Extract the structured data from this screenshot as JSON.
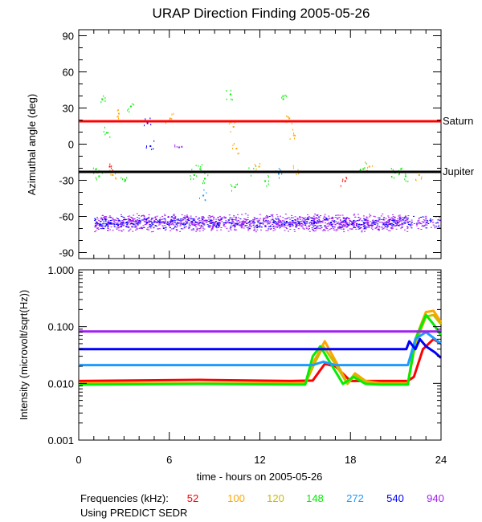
{
  "chart_data": [
    {
      "type": "scatter",
      "title": "URAP Direction Finding  2005-05-26",
      "ylabel": "Azimuthal angle (deg)",
      "xlim": [
        0,
        24
      ],
      "ylim": [
        -95,
        95
      ],
      "yticks": [
        "90",
        "60",
        "30",
        "0",
        "-30",
        "-60",
        "-90"
      ],
      "reference_lines": [
        {
          "name": "Saturn",
          "value": 19,
          "color": "#ff0000"
        },
        {
          "name": "Jupiter",
          "value": -23,
          "color": "#000000"
        }
      ],
      "bands": [
        {
          "name": "940 kHz main band",
          "center": -65,
          "spread": 8,
          "color": "#a020f0"
        },
        {
          "name": "540 kHz main band",
          "center": -65,
          "spread": 6,
          "color": "#0000ff"
        }
      ],
      "scatter_points": [
        {
          "x": 1.1,
          "y": -20,
          "color": "#00ee00"
        },
        {
          "x": 1.3,
          "y": -26,
          "color": "#00ee00"
        },
        {
          "x": 1.5,
          "y": 38,
          "color": "#00ee00"
        },
        {
          "x": 1.8,
          "y": 10,
          "color": "#00ee00"
        },
        {
          "x": 2.0,
          "y": -18,
          "color": "#ff0000"
        },
        {
          "x": 2.2,
          "y": -25,
          "color": "#ffa500"
        },
        {
          "x": 2.6,
          "y": 26,
          "color": "#ffa500"
        },
        {
          "x": 3.0,
          "y": -30,
          "color": "#00ee00"
        },
        {
          "x": 3.4,
          "y": 32,
          "color": "#00ee00"
        },
        {
          "x": 4.5,
          "y": 18,
          "color": "#0000ff"
        },
        {
          "x": 4.7,
          "y": -1,
          "color": "#0000ff"
        },
        {
          "x": 6.0,
          "y": 22,
          "color": "#ffa500"
        },
        {
          "x": 6.6,
          "y": -2,
          "color": "#a020f0"
        },
        {
          "x": 7.6,
          "y": -25,
          "color": "#00ee00"
        },
        {
          "x": 8.0,
          "y": -20,
          "color": "#00ee00"
        },
        {
          "x": 8.3,
          "y": -28,
          "color": "#00ee00"
        },
        {
          "x": 8.2,
          "y": -42,
          "color": "#1e9bff"
        },
        {
          "x": 10.0,
          "y": 42,
          "color": "#00ee00"
        },
        {
          "x": 10.2,
          "y": 15,
          "color": "#ffa500"
        },
        {
          "x": 10.4,
          "y": -3,
          "color": "#ffa500"
        },
        {
          "x": 10.3,
          "y": -35,
          "color": "#00ee00"
        },
        {
          "x": 11.5,
          "y": -22,
          "color": "#00ee00"
        },
        {
          "x": 11.9,
          "y": -18,
          "color": "#ffa500"
        },
        {
          "x": 12.3,
          "y": -30,
          "color": "#00ee00"
        },
        {
          "x": 13.5,
          "y": 38,
          "color": "#00ee00"
        },
        {
          "x": 13.9,
          "y": 22,
          "color": "#ffa500"
        },
        {
          "x": 14.2,
          "y": 8,
          "color": "#ffa500"
        },
        {
          "x": 13.2,
          "y": -24,
          "color": "#1e9bff"
        },
        {
          "x": 14.4,
          "y": -22,
          "color": "#ffa500"
        },
        {
          "x": 17.6,
          "y": -30,
          "color": "#ff0000"
        },
        {
          "x": 18.8,
          "y": -20,
          "color": "#00ee00"
        },
        {
          "x": 19.2,
          "y": -18,
          "color": "#ffa500"
        },
        {
          "x": 20.9,
          "y": -23,
          "color": "#00ee00"
        },
        {
          "x": 21.3,
          "y": -20,
          "color": "#00ee00"
        },
        {
          "x": 21.6,
          "y": -26,
          "color": "#00ee00"
        },
        {
          "x": 22.5,
          "y": -25,
          "color": "#ffa500"
        }
      ]
    },
    {
      "type": "line",
      "ylabel": "Intensity (microvolt/sqrt(Hz))",
      "xlabel": "time - hours on 2005-05-26",
      "scale": "log",
      "xticks": [
        "0",
        "6",
        "12",
        "18",
        "24"
      ],
      "yticks": [
        "1.000",
        "0.100",
        "0.010",
        "0.001"
      ],
      "ylim": [
        0.001,
        1.0
      ],
      "series": [
        {
          "name": "52",
          "color": "#ff0000",
          "x": [
            0,
            8,
            14,
            15.5,
            16.3,
            17,
            18,
            19,
            20,
            21,
            21.8,
            22.2,
            22.8,
            23.5,
            24
          ],
          "values": [
            0.011,
            0.0115,
            0.011,
            0.0112,
            0.022,
            0.02,
            0.011,
            0.011,
            0.011,
            0.011,
            0.011,
            0.013,
            0.04,
            0.06,
            0.05
          ]
        },
        {
          "name": "100",
          "color": "#ffa500",
          "x": [
            0,
            8,
            15,
            15.6,
            16.3,
            17,
            17.8,
            18.3,
            19,
            20,
            21.8,
            22.3,
            23,
            23.5,
            24
          ],
          "values": [
            0.01,
            0.01,
            0.01,
            0.025,
            0.055,
            0.025,
            0.01,
            0.015,
            0.011,
            0.01,
            0.01,
            0.06,
            0.18,
            0.19,
            0.12
          ]
        },
        {
          "name": "120",
          "color": "#ccbb00",
          "x": [
            0,
            8,
            15,
            15.6,
            16.2,
            17,
            17.8,
            18.3,
            19,
            20,
            21.8,
            22.3,
            23,
            23.5,
            24
          ],
          "values": [
            0.0098,
            0.0098,
            0.0098,
            0.022,
            0.045,
            0.022,
            0.0098,
            0.014,
            0.0105,
            0.0098,
            0.0098,
            0.05,
            0.15,
            0.16,
            0.11
          ]
        },
        {
          "name": "148",
          "color": "#00ee00",
          "x": [
            0,
            8,
            15,
            15.5,
            16.0,
            16.8,
            17.5,
            18.2,
            19,
            20,
            21.8,
            22.3,
            23,
            23.5,
            24
          ],
          "values": [
            0.0095,
            0.0098,
            0.0095,
            0.03,
            0.045,
            0.02,
            0.0098,
            0.013,
            0.0098,
            0.0095,
            0.0095,
            0.06,
            0.16,
            0.11,
            0.07
          ]
        },
        {
          "name": "272",
          "color": "#1e9bff",
          "x": [
            0,
            10,
            15.5,
            16.2,
            17,
            21.8,
            22.3,
            23,
            24
          ],
          "values": [
            0.021,
            0.021,
            0.021,
            0.024,
            0.021,
            0.021,
            0.06,
            0.08,
            0.05
          ]
        },
        {
          "name": "540",
          "color": "#0000ff",
          "x": [
            0,
            10,
            21.7,
            21.9,
            22.3,
            22.6,
            23,
            23.6,
            24
          ],
          "values": [
            0.04,
            0.04,
            0.04,
            0.055,
            0.04,
            0.06,
            0.045,
            0.035,
            0.028
          ]
        },
        {
          "name": "940",
          "color": "#a020f0",
          "x": [
            0,
            10,
            21.8,
            22.3,
            24
          ],
          "values": [
            0.082,
            0.082,
            0.082,
            0.082,
            0.082
          ]
        }
      ]
    }
  ],
  "legend": {
    "label": "Frequencies (kHz):",
    "items": [
      {
        "text": "52",
        "color": "#ff0000"
      },
      {
        "text": "100",
        "color": "#ffa500"
      },
      {
        "text": "120",
        "color": "#ccbb00"
      },
      {
        "text": "148",
        "color": "#00ee00"
      },
      {
        "text": "272",
        "color": "#1e9bff"
      },
      {
        "text": "540",
        "color": "#0000ff"
      },
      {
        "text": "940",
        "color": "#a020f0"
      }
    ]
  },
  "footer": "Using PREDICT SEDR"
}
